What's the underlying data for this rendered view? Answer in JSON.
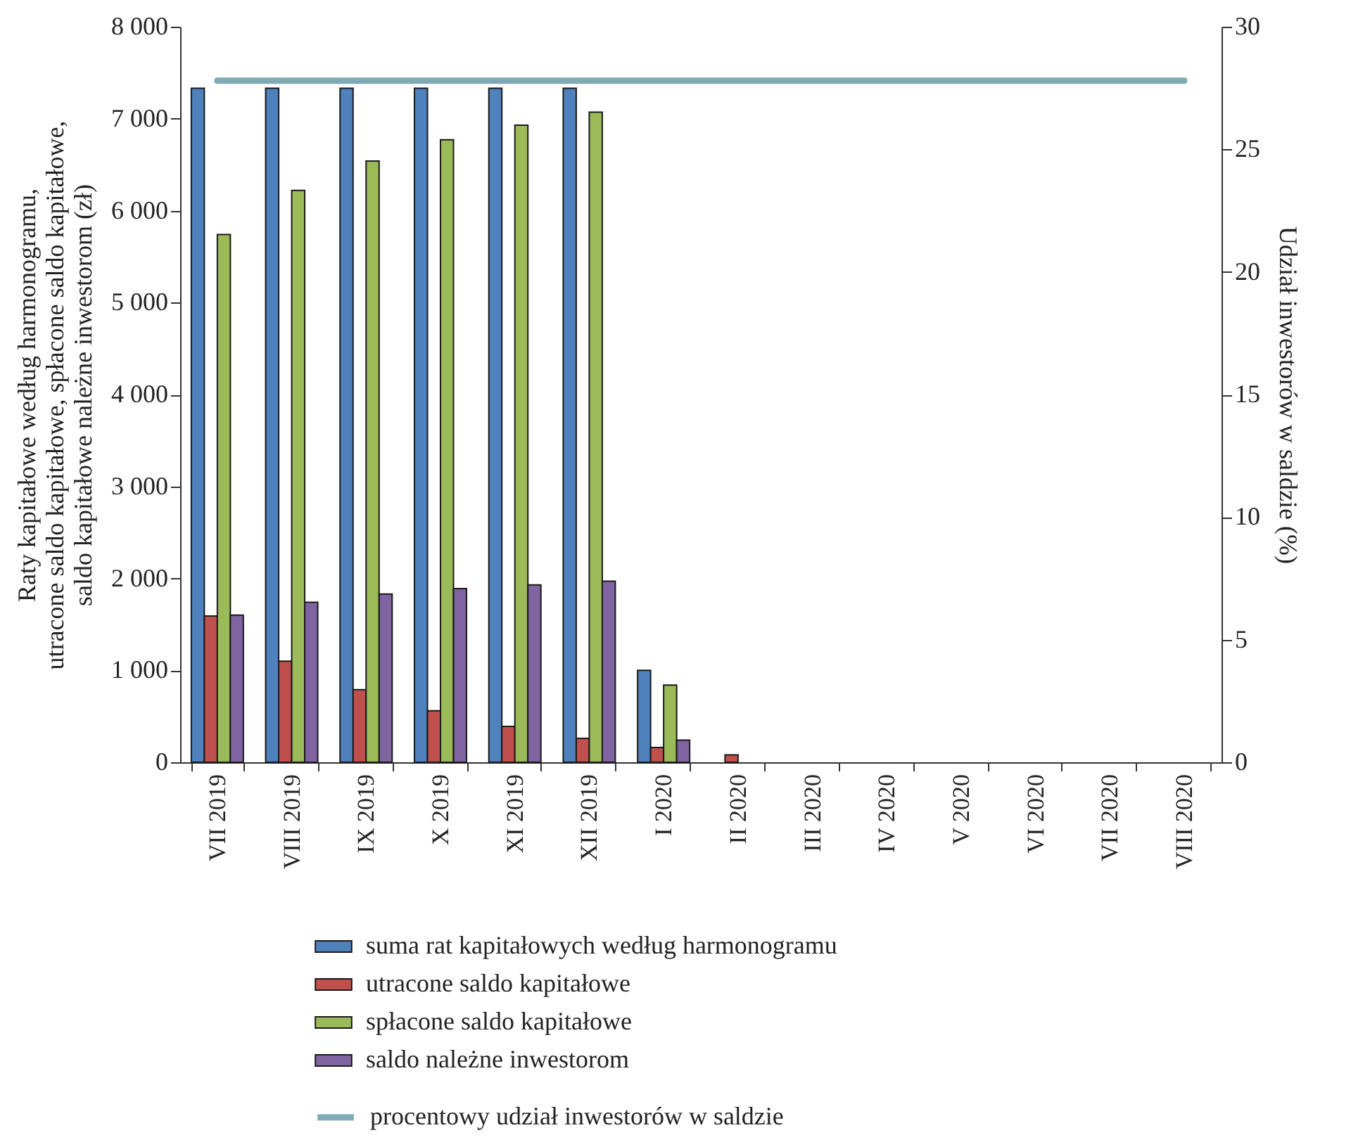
{
  "chart_data": {
    "type": "bar",
    "ylabel": "Raty kapitałowe według harmonogramu,\nutracone saldo kapitałowe, spłacone saldo kapitałowe,\nsaldo kapitałowe należne inwestorom (zł)",
    "y2label": "Udział inwestorów w saldzie (%)",
    "categories": [
      "VII 2019",
      "VIII 2019",
      "IX 2019",
      "X 2019",
      "XI 2019",
      "XII 2019",
      "I 2020",
      "II 2020",
      "III 2020",
      "IV 2020",
      "V 2020",
      "VI 2020",
      "VII 2020",
      "VIII 2020"
    ],
    "series": [
      {
        "name": "suma rat kapitałowych według harmonogramu",
        "color": "#4f81bd",
        "values": [
          7330,
          7330,
          7330,
          7330,
          7330,
          7330,
          1000,
          0,
          0,
          0,
          0,
          0,
          0,
          0
        ]
      },
      {
        "name": "utracone saldo kapitałowe",
        "color": "#c0504d",
        "values": [
          1590,
          1100,
          790,
          560,
          390,
          260,
          160,
          80,
          0,
          0,
          0,
          0,
          0,
          0
        ]
      },
      {
        "name": "spłacone saldo kapitałowe",
        "color": "#9bbb59",
        "values": [
          5740,
          6220,
          6540,
          6770,
          6930,
          7070,
          840,
          0,
          0,
          0,
          0,
          0,
          0,
          0
        ]
      },
      {
        "name": "saldo należne inwestorom",
        "color": "#8064a2",
        "values": [
          1600,
          1740,
          1830,
          1890,
          1930,
          1970,
          240,
          0,
          0,
          0,
          0,
          0,
          0,
          0
        ]
      },
      {
        "name": "procentowy udział inwestorów w saldzie",
        "color": "#7fa9b5",
        "type": "line",
        "axis": "y2",
        "values": [
          27.8,
          27.8,
          27.8,
          27.8,
          27.8,
          27.8,
          27.8,
          27.8,
          27.8,
          27.8,
          27.8,
          27.8,
          27.8,
          27.8
        ]
      }
    ],
    "ylim": [
      0,
      8000
    ],
    "yticks": [
      0,
      1000,
      2000,
      3000,
      4000,
      5000,
      6000,
      7000,
      8000
    ],
    "y2lim": [
      0,
      30
    ],
    "y2ticks": [
      0,
      5,
      10,
      15,
      20,
      25,
      30
    ],
    "grid": false,
    "legend": "bottom",
    "line_style": "solid",
    "marker": "none"
  }
}
